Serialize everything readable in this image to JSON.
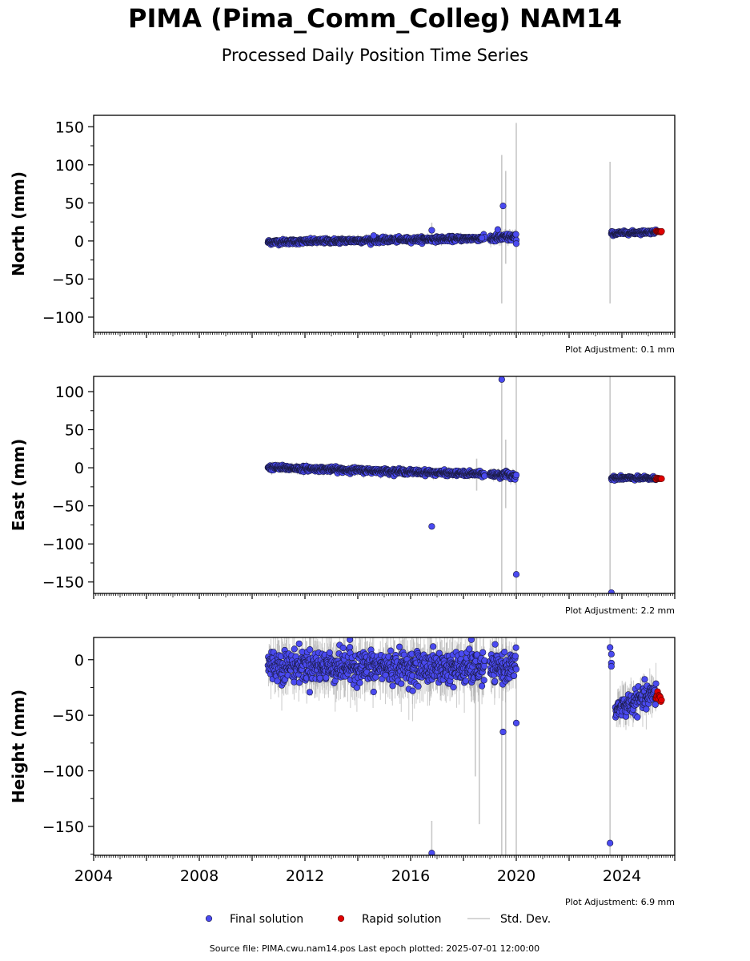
{
  "title": "PIMA (Pima_Comm_Colleg) NAM14",
  "subtitle": "Processed Daily Position Time Series",
  "footer": "Source file: PIMA.cwu.nam14.pos  Last epoch plotted: 2025-07-01 12:00:00",
  "legend": {
    "final": "Final solution",
    "rapid": "Rapid solution",
    "std": "Std. Dev."
  },
  "colors": {
    "final": "#4a4af0",
    "rapid": "#e00000",
    "std": "#c8c8c8",
    "edge": "#1a1a40"
  },
  "chart_data": [
    {
      "type": "scatter",
      "ylabel": "North (mm)",
      "xlim": [
        2004,
        2026
      ],
      "ylim": [
        -120,
        165
      ],
      "yticks": [
        150,
        100,
        50,
        0,
        -50,
        -100
      ],
      "ytick_labels": [
        "150",
        "100",
        "50",
        "0",
        "−50",
        "−100"
      ],
      "adjustment": "Plot Adjustment: 0.1 mm",
      "segments": [
        {
          "x0": 2010.6,
          "x1": 2018.8,
          "y0": -1.5,
          "y1": 3.5,
          "noise": 1.6
        },
        {
          "x0": 2019.0,
          "x1": 2020.0,
          "y0": 3.5,
          "y1": 5.0,
          "noise": 2.5
        },
        {
          "x0": 2023.6,
          "x1": 2025.3,
          "y0": 10.0,
          "y1": 12.0,
          "noise": 1.2
        }
      ],
      "outliers": [
        [
          2014.6,
          7
        ],
        [
          2016.8,
          14
        ],
        [
          2019.5,
          46
        ],
        [
          2019.3,
          15
        ],
        [
          2020.0,
          -3.5
        ],
        [
          2018.7,
          4
        ]
      ],
      "rapid": {
        "x0": 2025.3,
        "x1": 2025.5,
        "y": 12.5
      },
      "std_spikes": [
        [
          2019.45,
          -82,
          113
        ],
        [
          2019.6,
          -30,
          92
        ],
        [
          2020.0,
          -120,
          155
        ],
        [
          2023.55,
          -82,
          104
        ],
        [
          2016.8,
          6,
          24
        ]
      ]
    },
    {
      "type": "scatter",
      "ylabel": "East (mm)",
      "xlim": [
        2004,
        2026
      ],
      "ylim": [
        -165,
        120
      ],
      "yticks": [
        100,
        50,
        0,
        -50,
        -100,
        -150
      ],
      "ytick_labels": [
        "100",
        "50",
        "0",
        "−50",
        "−100",
        "−150"
      ],
      "adjustment": "Plot Adjustment: 2.2 mm",
      "segments": [
        {
          "x0": 2010.6,
          "x1": 2018.8,
          "y0": 0.5,
          "y1": -8.5,
          "noise": 1.6
        },
        {
          "x0": 2019.0,
          "x1": 2020.0,
          "y0": -9.0,
          "y1": -10.0,
          "noise": 2.0
        },
        {
          "x0": 2023.6,
          "x1": 2025.3,
          "y0": -13.5,
          "y1": -14.0,
          "noise": 1.2
        }
      ],
      "outliers": [
        [
          2019.45,
          116
        ],
        [
          2016.8,
          -77
        ],
        [
          2020.0,
          -140
        ],
        [
          2023.6,
          -164
        ]
      ],
      "rapid": {
        "x0": 2025.3,
        "x1": 2025.5,
        "y": -14.0
      },
      "std_spikes": [
        [
          2019.45,
          -165,
          120
        ],
        [
          2019.6,
          -53,
          37
        ],
        [
          2020.0,
          -165,
          120
        ],
        [
          2023.55,
          -165,
          120
        ],
        [
          2018.5,
          -30,
          12
        ]
      ]
    },
    {
      "type": "scatter",
      "ylabel": "Height (mm)",
      "xlim": [
        2004,
        2026
      ],
      "ylim": [
        -176,
        20
      ],
      "yticks": [
        0,
        -50,
        -100,
        -150
      ],
      "ytick_labels": [
        "0",
        "−50",
        "−100",
        "−150"
      ],
      "xticks": [
        2004,
        2008,
        2012,
        2016,
        2020,
        2024
      ],
      "xtick_labels": [
        "2004",
        "2008",
        "2012",
        "2016",
        "2020",
        "2024"
      ],
      "adjustment": "Plot Adjustment: 6.9 mm",
      "segments": [
        {
          "x0": 2010.6,
          "x1": 2018.8,
          "y0": -5.0,
          "y1": -8.0,
          "noise": 7.0
        },
        {
          "x0": 2019.0,
          "x1": 2020.0,
          "y0": -8.0,
          "y1": -6.0,
          "noise": 6.0
        },
        {
          "x0": 2023.75,
          "x1": 2025.3,
          "y0": -45.0,
          "y1": -30.0,
          "noise": 5.0
        }
      ],
      "outliers": [
        [
          2013.7,
          18
        ],
        [
          2014.6,
          -29
        ],
        [
          2016.8,
          -174
        ],
        [
          2018.3,
          18
        ],
        [
          2019.5,
          -65
        ],
        [
          2020.0,
          -57
        ],
        [
          2023.55,
          -165
        ],
        [
          2023.55,
          11
        ],
        [
          2023.6,
          5
        ],
        [
          2023.6,
          -3
        ],
        [
          2023.6,
          -6
        ]
      ],
      "rapid": {
        "x0": 2025.3,
        "x1": 2025.5,
        "y": -35.0
      },
      "std_spikes": [
        [
          2018.45,
          -105,
          -20
        ],
        [
          2018.6,
          -148,
          5
        ],
        [
          2019.45,
          -176,
          20
        ],
        [
          2019.6,
          -176,
          20
        ],
        [
          2020.0,
          -176,
          20
        ],
        [
          2023.55,
          -176,
          20
        ],
        [
          2016.8,
          -176,
          -145
        ]
      ]
    }
  ]
}
